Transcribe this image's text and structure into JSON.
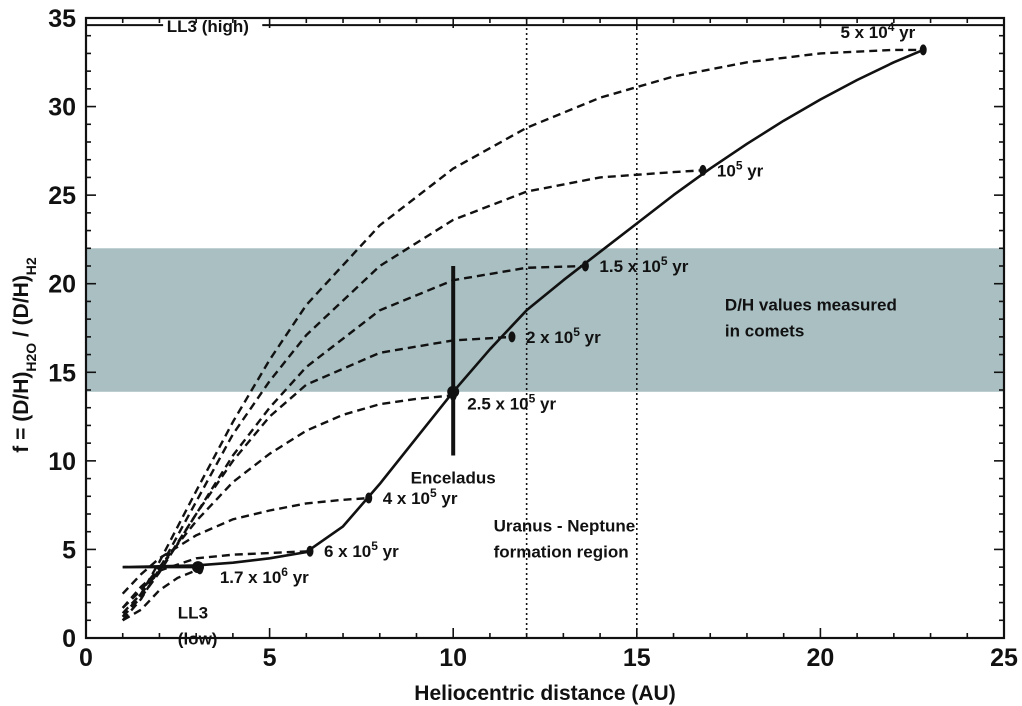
{
  "chart_data": {
    "type": "line",
    "xlabel": "Heliocentric distance (AU)",
    "ylabel_parts": {
      "base": "f = (D/H)",
      "sub1": "H2O",
      "mid": " / (D/H)",
      "sub2": "H2"
    },
    "xlim": [
      0,
      25
    ],
    "ylim": [
      0,
      35
    ],
    "x_ticks": [
      0,
      5,
      10,
      15,
      20,
      25
    ],
    "y_ticks": [
      0,
      5,
      10,
      15,
      20,
      25,
      30,
      35
    ],
    "grid": false,
    "band": {
      "y_range": [
        13.9,
        22.0
      ],
      "color": "#a9bfc2",
      "label_lines": [
        "D/H values measured",
        "in comets"
      ]
    },
    "reference_lines": [
      {
        "label": "LL3 (high)",
        "y": 34.6
      },
      {
        "label_lines": [
          "LL3",
          "(low)"
        ],
        "y": 4.0,
        "x_range": [
          1,
          3.2
        ]
      }
    ],
    "vertical_lines": [
      12,
      15
    ],
    "region_label_lines": [
      "Uranus - Neptune",
      "formation region"
    ],
    "enceladus": {
      "label": "Enceladus",
      "x": 10,
      "y": 13.9,
      "y_range": [
        10.3,
        21.0
      ]
    },
    "series": [
      {
        "x": [
          1,
          2,
          3,
          4,
          5,
          6,
          7,
          8,
          9,
          10,
          11,
          12,
          13,
          14,
          15,
          16,
          17,
          18,
          19,
          20,
          21,
          22,
          22.8
        ],
        "y": [
          4.0,
          4.05,
          4.1,
          4.25,
          4.5,
          4.85,
          6.3,
          8.7,
          11.3,
          13.9,
          16.3,
          18.5,
          20.2,
          21.8,
          23.4,
          25.0,
          26.5,
          27.9,
          29.2,
          30.4,
          31.5,
          32.5,
          33.2
        ],
        "style": "solid"
      },
      {
        "x": [
          1,
          1.5,
          2,
          3,
          4,
          5,
          6,
          8,
          10,
          12,
          14,
          16,
          18,
          20,
          22,
          22.8
        ],
        "y": [
          1.2,
          2.5,
          4.3,
          8.3,
          12.2,
          15.7,
          18.8,
          23.3,
          26.5,
          28.8,
          30.5,
          31.7,
          32.5,
          33.0,
          33.2,
          33.2
        ],
        "style": "dashed",
        "marker": {
          "x": 22.8,
          "y": 33.2,
          "label_parts": [
            "5 x 10",
            "4",
            " yr"
          ]
        }
      },
      {
        "x": [
          1,
          1.5,
          2,
          3,
          4,
          5,
          6,
          8,
          10,
          12,
          14,
          16,
          16.8
        ],
        "y": [
          1.0,
          2.2,
          3.9,
          7.7,
          11.5,
          14.5,
          17.1,
          21.0,
          23.6,
          25.2,
          26.0,
          26.3,
          26.4
        ],
        "style": "dashed",
        "marker": {
          "x": 16.8,
          "y": 26.4,
          "label_parts": [
            "10",
            "5",
            " yr"
          ]
        }
      },
      {
        "x": [
          1,
          1.5,
          2,
          3,
          4,
          5,
          6,
          8,
          10,
          12,
          13.6
        ],
        "y": [
          1.2,
          2.3,
          3.7,
          7.0,
          10.3,
          13.0,
          15.3,
          18.5,
          20.2,
          20.9,
          21.0
        ],
        "style": "dashed",
        "marker": {
          "x": 13.6,
          "y": 21.0,
          "label_parts": [
            "1.5 x 10",
            "5",
            " yr"
          ]
        }
      },
      {
        "x": [
          1,
          1.5,
          2,
          3,
          4,
          5,
          6,
          8,
          10,
          11.6
        ],
        "y": [
          1.4,
          2.5,
          3.8,
          7.0,
          10.0,
          12.5,
          14.3,
          16.1,
          16.8,
          17.0
        ],
        "style": "dashed",
        "marker": {
          "x": 11.6,
          "y": 17.0,
          "label_parts": [
            "2 x 10",
            "5",
            " yr"
          ]
        }
      },
      {
        "x": [
          1,
          1.5,
          2,
          3,
          4,
          5,
          6,
          7,
          8,
          9,
          10
        ],
        "y": [
          1.7,
          2.7,
          4.0,
          6.6,
          8.8,
          10.4,
          11.7,
          12.6,
          13.2,
          13.5,
          13.7
        ],
        "style": "dashed",
        "marker": {
          "x": 10,
          "y": 13.7,
          "label_parts": [
            "2.5 x 10",
            "5",
            " yr"
          ]
        }
      },
      {
        "x": [
          1,
          1.5,
          2,
          3,
          4,
          5,
          6,
          7,
          7.7
        ],
        "y": [
          2.5,
          3.6,
          4.5,
          5.8,
          6.7,
          7.2,
          7.6,
          7.8,
          7.9
        ],
        "style": "dashed",
        "marker": {
          "x": 7.7,
          "y": 7.9,
          "label_parts": [
            "4 x 10",
            "5",
            " yr"
          ]
        }
      },
      {
        "x": [
          1,
          1.5,
          2,
          3,
          4,
          5,
          6.1
        ],
        "y": [
          1.7,
          2.9,
          3.8,
          4.5,
          4.7,
          4.8,
          4.9
        ],
        "style": "dashed",
        "marker": {
          "x": 6.1,
          "y": 4.9,
          "label_parts": [
            "6 x 10",
            "5",
            " yr"
          ]
        }
      },
      {
        "x": [
          1,
          1.5,
          2,
          2.5,
          3.1
        ],
        "y": [
          1.0,
          1.6,
          2.7,
          3.4,
          3.9
        ],
        "style": "dashed",
        "marker": {
          "x": 3.1,
          "y": 3.9,
          "label_parts": [
            "1.7 x 10",
            "6",
            " yr"
          ]
        }
      }
    ]
  }
}
